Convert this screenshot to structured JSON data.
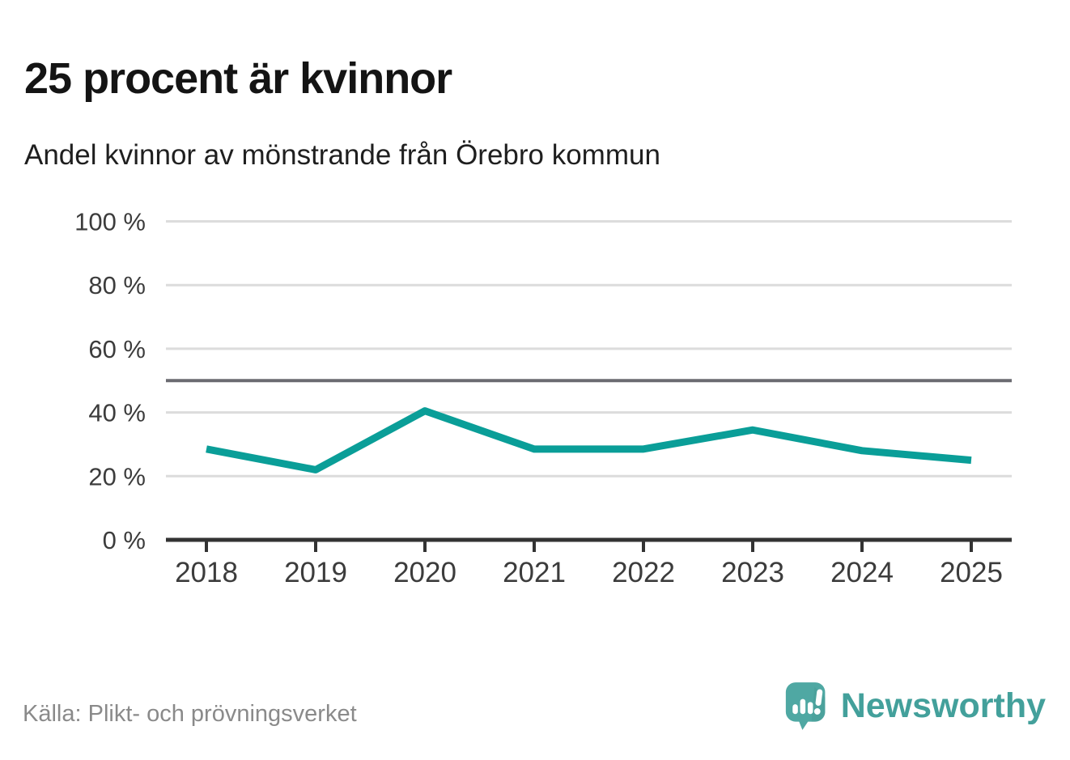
{
  "header": {
    "title": "25 procent är kvinnor",
    "subtitle": "Andel kvinnor av mönstrande från Örebro kommun"
  },
  "chart_data": {
    "type": "line",
    "title": "25 procent är kvinnor",
    "subtitle": "Andel kvinnor av mönstrande från Örebro kommun",
    "categories": [
      "2018",
      "2019",
      "2020",
      "2021",
      "2022",
      "2023",
      "2024",
      "2025"
    ],
    "series": [
      {
        "name": "Andel kvinnor av mönstrande",
        "values": [
          28.5,
          22,
          40.5,
          28.5,
          28.5,
          34.5,
          28,
          25
        ]
      }
    ],
    "ylim": [
      0,
      100
    ],
    "yticks": [
      0,
      20,
      40,
      60,
      80,
      100
    ],
    "ytick_labels": [
      "0 %",
      "20 %",
      "40 %",
      "60 %",
      "80 %",
      "100 %"
    ],
    "reference_line": 50,
    "grid": true,
    "legend_position": "none",
    "colors": {
      "line": "#0a9e98",
      "grid": "#dcdcdc",
      "reference": "#6b6b71",
      "axis": "#333333",
      "tick_text": "#3c3c3c"
    }
  },
  "footer": {
    "source": "Källa: Plikt- och prövningsverket",
    "brand": "Newsworthy",
    "brand_color": "#43a09b",
    "icon_color": "#4fa8a3"
  }
}
